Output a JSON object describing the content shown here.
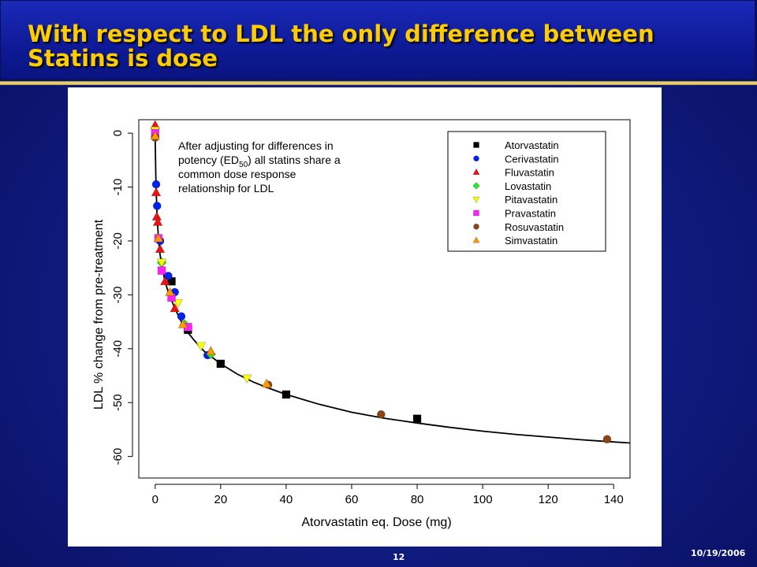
{
  "slide": {
    "title": "With respect to LDL the only difference between Statins is dose",
    "page_number": "12",
    "date": "10/19/2006"
  },
  "colors": {
    "title": "#ffcc00",
    "background": "#121d86",
    "Atorvastatin": "#000000",
    "Cerivastatin": "#0022ee",
    "Fluvastatin": "#ee1111",
    "Lovastatin": "#22ee22",
    "Pitavastatin": "#ffff00",
    "Pravastatin": "#ff22ff",
    "Rosuvastatin": "#8b4513",
    "Simvastatin": "#ff9900"
  },
  "chart_data": {
    "type": "scatter",
    "xlabel": "Atorvastatin eq. Dose (mg)",
    "ylabel": "LDL % change from pre-treatment",
    "xlim": [
      -5,
      145
    ],
    "ylim": [
      -64,
      2.5
    ],
    "x_ticks": [
      0,
      20,
      40,
      60,
      80,
      100,
      120,
      140
    ],
    "y_ticks": [
      0,
      -10,
      -20,
      -30,
      -40,
      -50,
      -60
    ],
    "grid": false,
    "legend_position": "top-right",
    "annotation": {
      "line1": "After adjusting for differences in",
      "line2_pre": "potency (ED",
      "line2_sub": "50",
      "line2_post": ") all statins share a",
      "line3": "common dose response",
      "line4": "relationship for LDL"
    },
    "fit_curve": {
      "x": [
        0,
        0.2,
        0.5,
        1,
        1.5,
        2,
        3,
        4,
        5,
        6,
        8,
        10,
        12,
        15,
        20,
        25,
        30,
        35,
        40,
        50,
        60,
        70,
        80,
        90,
        100,
        110,
        120,
        130,
        140,
        145
      ],
      "y": [
        -1,
        -8,
        -14,
        -19.5,
        -22.5,
        -24.5,
        -27.5,
        -29.5,
        -31,
        -32.5,
        -35,
        -37,
        -38.5,
        -40.5,
        -42.8,
        -44.7,
        -46.2,
        -47.4,
        -48.5,
        -50.3,
        -51.8,
        -52.9,
        -53.8,
        -54.6,
        -55.3,
        -55.9,
        -56.4,
        -56.9,
        -57.3,
        -57.5
      ]
    },
    "series": [
      {
        "name": "Atorvastatin",
        "marker": "square",
        "points": [
          [
            5,
            -27.5
          ],
          [
            10,
            -36.5
          ],
          [
            20,
            -42.8
          ],
          [
            40,
            -48.5
          ],
          [
            80,
            -53
          ]
        ]
      },
      {
        "name": "Cerivastatin",
        "marker": "circle",
        "points": [
          [
            0.3,
            -9.5
          ],
          [
            0.6,
            -13.5
          ],
          [
            1.5,
            -20
          ],
          [
            4,
            -26.5
          ],
          [
            6,
            -29.5
          ],
          [
            8,
            -34
          ],
          [
            16,
            -41.2
          ]
        ]
      },
      {
        "name": "Fluvastatin",
        "marker": "triangle-up",
        "points": [
          [
            0,
            1.5
          ],
          [
            0.3,
            -11
          ],
          [
            0.5,
            -15.5
          ],
          [
            0.8,
            -16.5
          ],
          [
            1.5,
            -21.5
          ],
          [
            3,
            -27.5
          ],
          [
            6,
            -32.5
          ],
          [
            17,
            -40.5
          ]
        ]
      },
      {
        "name": "Lovastatin",
        "marker": "diamond",
        "points": [
          [
            2,
            -24
          ],
          [
            9,
            -35.5
          ],
          [
            17,
            -41
          ]
        ]
      },
      {
        "name": "Pitavastatin",
        "marker": "triangle-down",
        "points": [
          [
            0,
            0.5
          ],
          [
            2,
            -24
          ],
          [
            7,
            -31.5
          ],
          [
            14,
            -39.5
          ],
          [
            28,
            -45.5
          ]
        ]
      },
      {
        "name": "Pravastatin",
        "marker": "square",
        "points": [
          [
            0,
            0
          ],
          [
            1,
            -19.5
          ],
          [
            2,
            -25.5
          ],
          [
            5,
            -30.5
          ],
          [
            10,
            -36
          ]
        ]
      },
      {
        "name": "Rosuvastatin",
        "marker": "circle",
        "points": [
          [
            0,
            -0.8
          ],
          [
            34.5,
            -46.7
          ],
          [
            69,
            -52.2
          ],
          [
            138,
            -56.8
          ]
        ]
      },
      {
        "name": "Simvastatin",
        "marker": "triangle-up",
        "points": [
          [
            0,
            -0.5
          ],
          [
            1,
            -19.5
          ],
          [
            4.5,
            -29.5
          ],
          [
            8.5,
            -35.5
          ],
          [
            17,
            -40.5
          ],
          [
            34,
            -46.5
          ]
        ]
      }
    ]
  }
}
